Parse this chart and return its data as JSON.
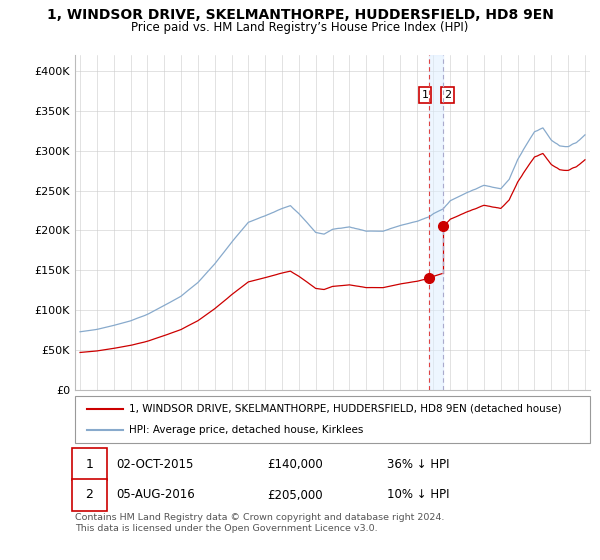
{
  "title": "1, WINDSOR DRIVE, SKELMANTHORPE, HUDDERSFIELD, HD8 9EN",
  "subtitle": "Price paid vs. HM Land Registry’s House Price Index (HPI)",
  "legend_label_red": "1, WINDSOR DRIVE, SKELMANTHORPE, HUDDERSFIELD, HD8 9EN (detached house)",
  "legend_label_blue": "HPI: Average price, detached house, Kirklees",
  "transaction1_label": "1",
  "transaction1_date": "02-OCT-2015",
  "transaction1_price": "£140,000",
  "transaction1_note": "36% ↓ HPI",
  "transaction2_label": "2",
  "transaction2_date": "05-AUG-2016",
  "transaction2_price": "£205,000",
  "transaction2_note": "10% ↓ HPI",
  "footer": "Contains HM Land Registry data © Crown copyright and database right 2024.\nThis data is licensed under the Open Government Licence v3.0.",
  "color_red": "#cc0000",
  "color_blue": "#88aacc",
  "color_dashed_red": "#dd4444",
  "color_dashed_blue": "#aaaacc",
  "color_shade": "#ddeeff",
  "ylim": [
    0,
    420000
  ],
  "yticks": [
    0,
    50000,
    100000,
    150000,
    200000,
    250000,
    300000,
    350000,
    400000
  ],
  "ytick_labels": [
    "£0",
    "£50K",
    "£100K",
    "£150K",
    "£200K",
    "£250K",
    "£300K",
    "£350K",
    "£400K"
  ],
  "t1_year": 2015.75,
  "t2_year": 2016.58,
  "t1_price": 140000,
  "t2_price": 205000,
  "background_color": "#ffffff",
  "grid_color": "#cccccc"
}
